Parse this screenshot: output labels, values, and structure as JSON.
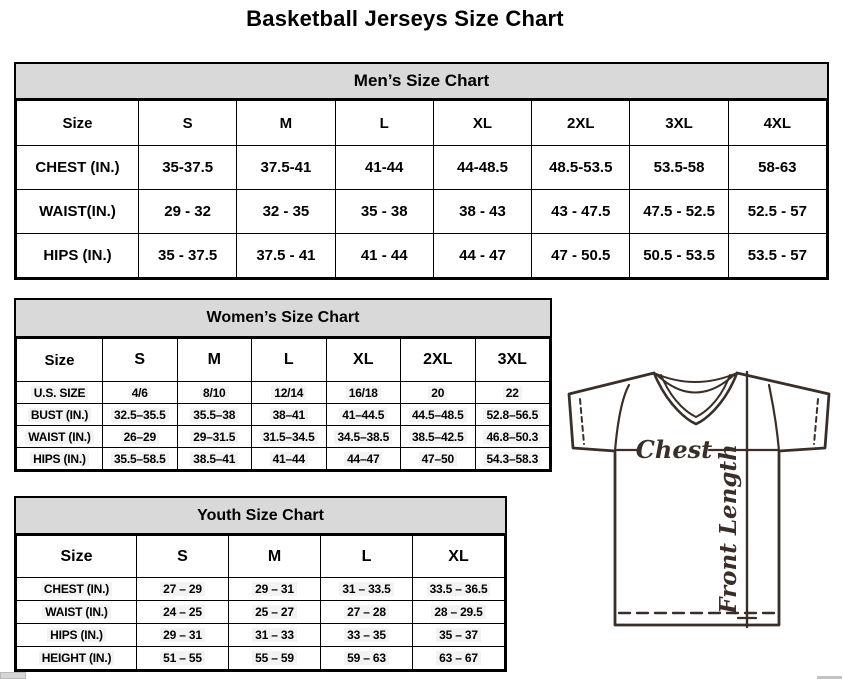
{
  "page_title": "Basketball Jerseys Size Chart",
  "colors": {
    "caption_background": "#d9d9d9",
    "table_border": "#000000",
    "diagram_line": "#3a2f28",
    "text": "#000000"
  },
  "tables": {
    "men": {
      "caption": "Men’s Size Chart",
      "col_header": [
        "Size",
        "S",
        "M",
        "L",
        "XL",
        "2XL",
        "3XL",
        "4XL"
      ],
      "rows": [
        {
          "label": "CHEST (IN.)",
          "values": [
            "35-37.5",
            "37.5-41",
            "41-44",
            "44-48.5",
            "48.5-53.5",
            "53.5-58",
            "58-63"
          ]
        },
        {
          "label": "WAIST(IN.)",
          "values": [
            "29 - 32",
            "32 - 35",
            "35 - 38",
            "38 - 43",
            "43 - 47.5",
            "47.5 - 52.5",
            "52.5 - 57"
          ]
        },
        {
          "label": "HIPS (IN.)",
          "values": [
            "35 - 37.5",
            "37.5 - 41",
            "41 - 44",
            "44 - 47",
            "47 - 50.5",
            "50.5 - 53.5",
            "53.5 - 57"
          ]
        }
      ]
    },
    "women": {
      "caption": "Women’s Size Chart",
      "col_header": [
        "Size",
        "S",
        "M",
        "L",
        "XL",
        "2XL",
        "3XL"
      ],
      "rows": [
        {
          "label": "U.S. SIZE",
          "values": [
            "4/6",
            "8/10",
            "12/14",
            "16/18",
            "20",
            "22"
          ]
        },
        {
          "label": "BUST (IN.)",
          "values": [
            "32.5–35.5",
            "35.5–38",
            "38–41",
            "41–44.5",
            "44.5–48.5",
            "52.8–56.5"
          ]
        },
        {
          "label": "WAIST (IN.)",
          "values": [
            "26–29",
            "29–31.5",
            "31.5–34.5",
            "34.5–38.5",
            "38.5–42.5",
            "46.8–50.3"
          ]
        },
        {
          "label": "HIPS (IN.)",
          "values": [
            "35.5–58.5",
            "38.5–41",
            "41–44",
            "44–47",
            "47–50",
            "54.3–58.3"
          ]
        }
      ]
    },
    "youth": {
      "caption": "Youth Size Chart",
      "col_header": [
        "Size",
        "S",
        "M",
        "L",
        "XL"
      ],
      "rows": [
        {
          "label": "CHEST (IN.)",
          "values": [
            "27 – 29",
            "29 – 31",
            "31 – 33.5",
            "33.5 – 36.5"
          ]
        },
        {
          "label": "WAIST (IN.)",
          "values": [
            "24 – 25",
            "25 – 27",
            "27 – 28",
            "28 – 29.5"
          ]
        },
        {
          "label": "HIPS (IN.)",
          "values": [
            "29 – 31",
            "31 – 33",
            "33 – 35",
            "35 – 37"
          ]
        },
        {
          "label": "HEIGHT (IN.)",
          "values": [
            "51 – 55",
            "55 – 59",
            "59 – 63",
            "63 – 67"
          ]
        }
      ]
    }
  },
  "diagram": {
    "chest_label": "Chest",
    "front_length_label": "Front Length"
  }
}
